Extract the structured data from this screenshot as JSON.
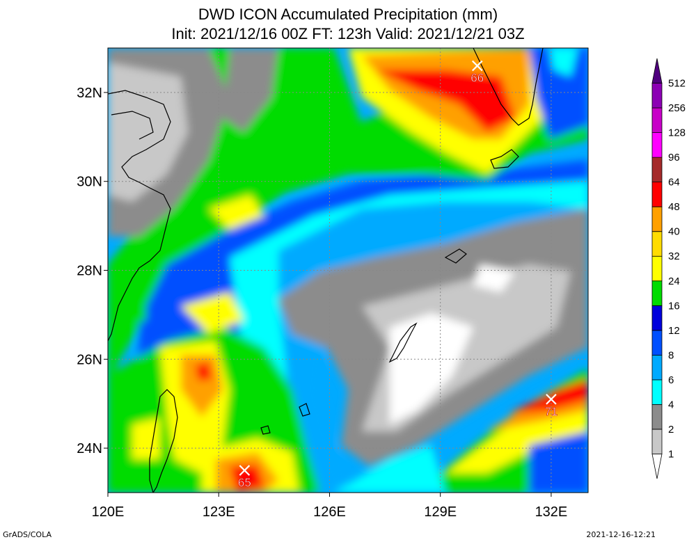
{
  "title": {
    "line1": "DWD ICON Accumulated Precipitation (mm)",
    "line2": "Init: 2021/12/16 00Z  FT: 123h  Valid: 2021/12/21 03Z"
  },
  "map": {
    "lon_range": [
      120,
      133
    ],
    "lat_range": [
      23,
      33
    ],
    "lon_ticks": [
      {
        "value": 120,
        "label": "120E"
      },
      {
        "value": 123,
        "label": "123E"
      },
      {
        "value": 126,
        "label": "126E"
      },
      {
        "value": 129,
        "label": "129E"
      },
      {
        "value": 132,
        "label": "132E"
      }
    ],
    "lat_ticks": [
      {
        "value": 24,
        "label": "24N"
      },
      {
        "value": 26,
        "label": "26N"
      },
      {
        "value": 28,
        "label": "28N"
      },
      {
        "value": 30,
        "label": "30N"
      },
      {
        "value": 32,
        "label": "32N"
      }
    ],
    "maxima": [
      {
        "label": "66",
        "lon": 130.0,
        "lat": 32.6
      },
      {
        "label": "65",
        "lon": 123.7,
        "lat": 23.5
      },
      {
        "label": "71",
        "lon": 132.0,
        "lat": 25.1
      }
    ]
  },
  "colorbar": {
    "levels": [
      "1",
      "2",
      "4",
      "6",
      "8",
      "12",
      "16",
      "24",
      "32",
      "40",
      "48",
      "64",
      "96",
      "128",
      "256",
      "512"
    ],
    "colors": [
      "#ffffff",
      "#c8c8c8",
      "#8c8c8c",
      "#00ffff",
      "#00aaff",
      "#0050ff",
      "#0000dc",
      "#00dc00",
      "#ffff00",
      "#ffdc00",
      "#ffa000",
      "#ff0000",
      "#a52a2a",
      "#ff00ff",
      "#c800c8",
      "#8c00b4",
      "#50007f"
    ]
  },
  "footer": {
    "left": "GrADS/COLA",
    "right": "2021-12-16-12:21"
  }
}
